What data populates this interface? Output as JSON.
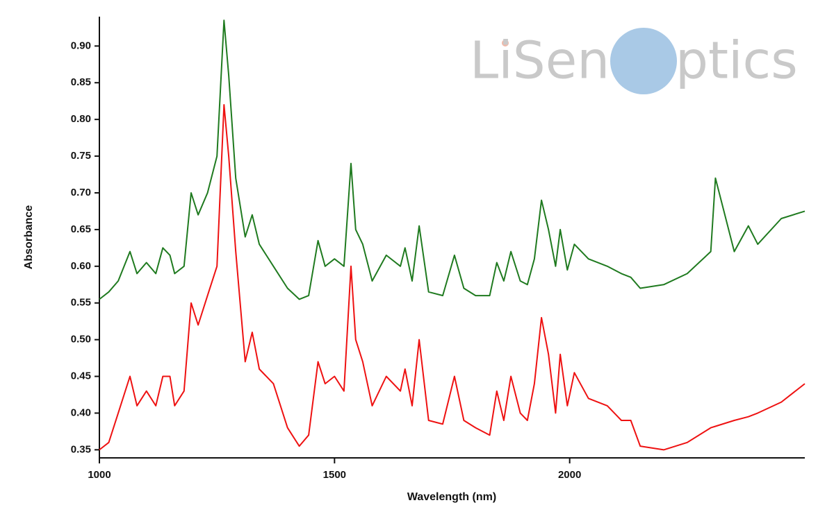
{
  "chart_data": {
    "type": "line",
    "x_label": "Wavelength (nm)",
    "y_label": "Absorbance",
    "annotations": [
      "LiSen",
      "ptics"
    ],
    "x": [
      1000,
      1020,
      1040,
      1065,
      1080,
      1100,
      1120,
      1135,
      1150,
      1160,
      1180,
      1195,
      1210,
      1230,
      1250,
      1265,
      1275,
      1290,
      1310,
      1325,
      1340,
      1370,
      1400,
      1425,
      1445,
      1465,
      1480,
      1500,
      1520,
      1535,
      1545,
      1560,
      1580,
      1610,
      1640,
      1650,
      1665,
      1680,
      1700,
      1730,
      1755,
      1775,
      1800,
      1830,
      1845,
      1860,
      1875,
      1895,
      1910,
      1925,
      1940,
      1955,
      1970,
      1980,
      1995,
      2010,
      2040,
      2080,
      2110,
      2130,
      2150,
      2200,
      2250,
      2300,
      2310,
      2350,
      2380,
      2400,
      2450,
      2500
    ],
    "series": [
      {
        "color": "#1f7a1f",
        "values": [
          0.555,
          0.565,
          0.58,
          0.62,
          0.59,
          0.605,
          0.59,
          0.625,
          0.615,
          0.59,
          0.6,
          0.7,
          0.67,
          0.7,
          0.75,
          0.935,
          0.86,
          0.72,
          0.64,
          0.67,
          0.63,
          0.6,
          0.57,
          0.555,
          0.56,
          0.635,
          0.6,
          0.61,
          0.6,
          0.74,
          0.65,
          0.63,
          0.58,
          0.615,
          0.6,
          0.625,
          0.58,
          0.655,
          0.565,
          0.56,
          0.615,
          0.57,
          0.56,
          0.56,
          0.605,
          0.58,
          0.62,
          0.58,
          0.575,
          0.61,
          0.69,
          0.65,
          0.6,
          0.65,
          0.595,
          0.63,
          0.61,
          0.6,
          0.59,
          0.585,
          0.57,
          0.575,
          0.59,
          0.62,
          0.72,
          0.62,
          0.655,
          0.63,
          0.665,
          0.675
        ]
      },
      {
        "color": "#ee1111",
        "values": [
          0.35,
          0.36,
          0.4,
          0.45,
          0.41,
          0.43,
          0.41,
          0.45,
          0.45,
          0.41,
          0.43,
          0.55,
          0.52,
          0.56,
          0.6,
          0.82,
          0.75,
          0.62,
          0.47,
          0.51,
          0.46,
          0.44,
          0.38,
          0.355,
          0.37,
          0.47,
          0.44,
          0.45,
          0.43,
          0.6,
          0.5,
          0.47,
          0.41,
          0.45,
          0.43,
          0.46,
          0.41,
          0.5,
          0.39,
          0.385,
          0.45,
          0.39,
          0.38,
          0.37,
          0.43,
          0.39,
          0.45,
          0.4,
          0.39,
          0.44,
          0.53,
          0.48,
          0.4,
          0.48,
          0.41,
          0.455,
          0.42,
          0.41,
          0.39,
          0.39,
          0.355,
          0.35,
          0.36,
          0.38,
          0.382,
          0.39,
          0.395,
          0.4,
          0.415,
          0.44
        ]
      }
    ],
    "xlim": [
      1000,
      2500
    ],
    "xticks": [
      1000,
      1500,
      2000
    ],
    "ylim": [
      0.339,
      0.94
    ],
    "yticks": [
      0.35,
      {
        "value": 0.4,
        "label": "0.40"
      },
      0.45,
      {
        "value": 0.5,
        "label": "0.50"
      },
      0.55,
      {
        "value": 0.6,
        "label": "0.60"
      },
      0.65,
      {
        "value": 0.7,
        "label": "0.70"
      },
      0.75,
      {
        "value": 0.8,
        "label": "0.80"
      },
      0.85,
      {
        "value": 0.9,
        "label": "0.90"
      }
    ],
    "grid": false
  }
}
